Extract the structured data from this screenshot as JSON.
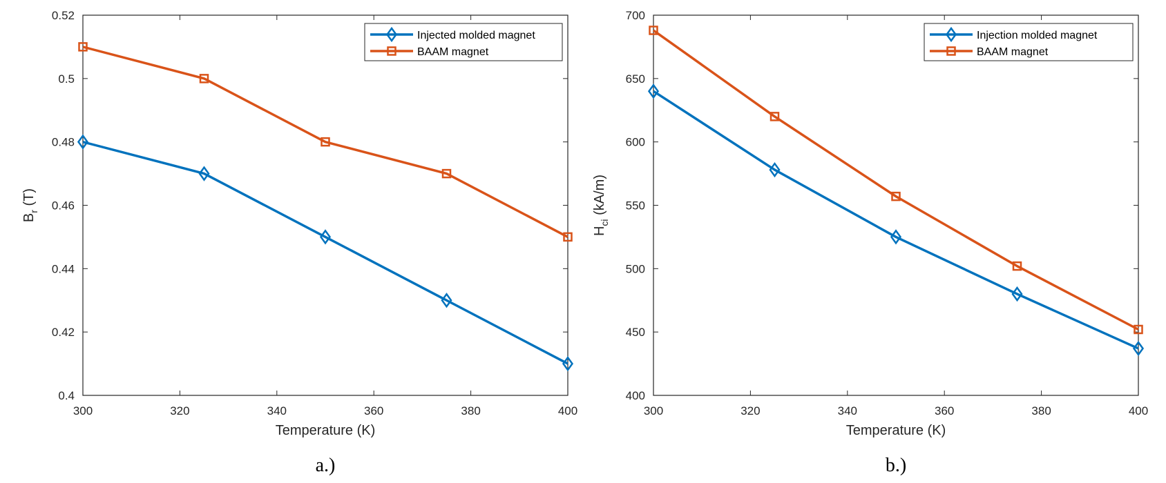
{
  "chart_data": [
    {
      "type": "line",
      "panel_label": "a.)",
      "xlabel": "Temperature (K)",
      "ylabel": {
        "main": "B",
        "sub": "r",
        "unit": " (T)"
      },
      "xlim": [
        300,
        400
      ],
      "ylim": [
        0.4,
        0.52
      ],
      "xticks": [
        300,
        320,
        340,
        360,
        380,
        400
      ],
      "yticks": [
        0.4,
        0.42,
        0.44,
        0.46,
        0.48,
        0.5,
        0.52
      ],
      "xtick_labels": [
        "300",
        "320",
        "340",
        "360",
        "380",
        "400"
      ],
      "ytick_labels": [
        "0.4",
        "0.42",
        "0.44",
        "0.46",
        "0.48",
        "0.5",
        "0.52"
      ],
      "grid": false,
      "legend_position": "top-right",
      "x": [
        300,
        325,
        350,
        375,
        400
      ],
      "series": [
        {
          "name": "Injected molded magnet",
          "marker": "diamond",
          "color": "#0072BD",
          "values": [
            0.48,
            0.47,
            0.45,
            0.43,
            0.41
          ]
        },
        {
          "name": "BAAM magnet",
          "marker": "square",
          "color": "#D95319",
          "values": [
            0.51,
            0.5,
            0.48,
            0.47,
            0.45
          ]
        }
      ]
    },
    {
      "type": "line",
      "panel_label": "b.)",
      "xlabel": "Temperature (K)",
      "ylabel": {
        "main": "H",
        "sub": "ci",
        "unit": " (kA/m)"
      },
      "xlim": [
        300,
        400
      ],
      "ylim": [
        400,
        700
      ],
      "xticks": [
        300,
        320,
        340,
        360,
        380,
        400
      ],
      "yticks": [
        400,
        450,
        500,
        550,
        600,
        650,
        700
      ],
      "xtick_labels": [
        "300",
        "320",
        "340",
        "360",
        "380",
        "400"
      ],
      "ytick_labels": [
        "400",
        "450",
        "500",
        "550",
        "600",
        "650",
        "700"
      ],
      "grid": false,
      "legend_position": "top-right",
      "x": [
        300,
        325,
        350,
        375,
        400
      ],
      "series": [
        {
          "name": "Injection molded magnet",
          "marker": "diamond",
          "color": "#0072BD",
          "values": [
            640,
            578,
            525,
            480,
            437
          ]
        },
        {
          "name": "BAAM magnet",
          "marker": "square",
          "color": "#D95319",
          "values": [
            688,
            620,
            557,
            502,
            452
          ]
        }
      ]
    }
  ]
}
